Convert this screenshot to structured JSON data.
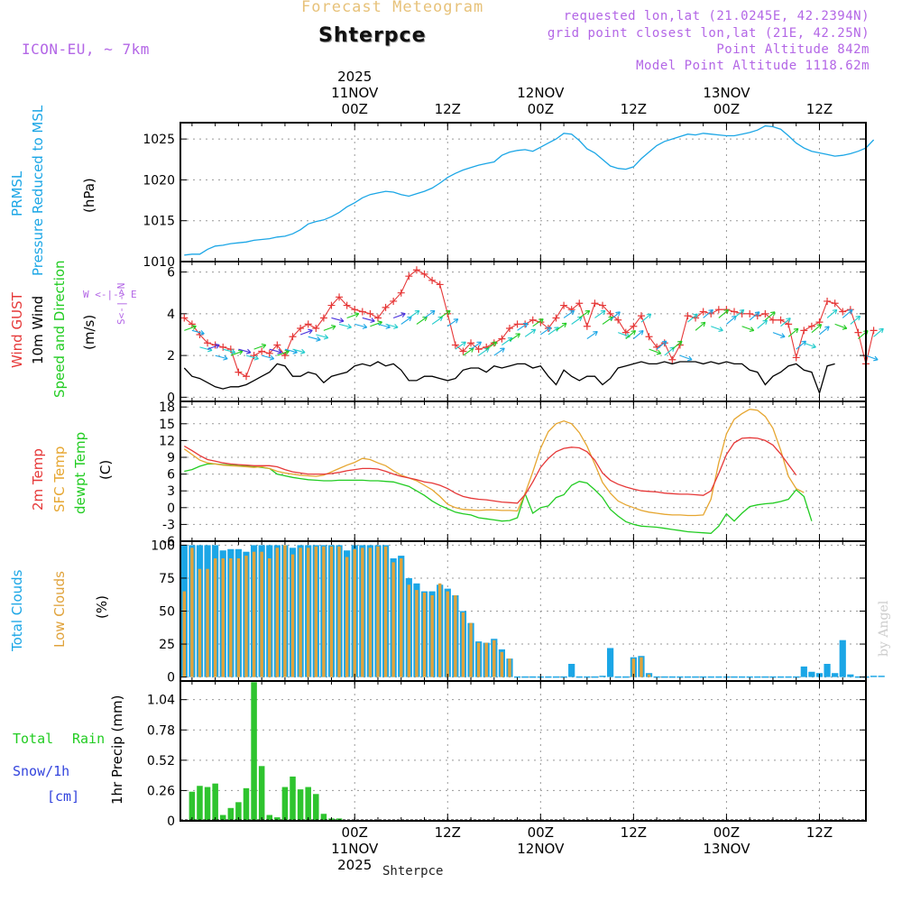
{
  "header": {
    "forecast_title": "Forecast Meteogram",
    "station": "Shterpce",
    "model": "ICON-EU, ~ 7km",
    "requested": "requested lon,lat (21.0245E, 42.2394N)",
    "gridpoint": "grid point closest lon,lat (21E, 42.25N)",
    "point_altitude": "Point Altitude 842m",
    "model_altitude": "Model Point Altitude 1118.62m"
  },
  "footer": {
    "station": "Shterpce",
    "credit": "by Angel"
  },
  "time_axis": {
    "top_labels": [
      {
        "hour": 22,
        "lines": [
          "2025",
          "11NOV",
          "00Z"
        ]
      },
      {
        "hour": 34,
        "lines": [
          "12Z"
        ]
      },
      {
        "hour": 46,
        "lines": [
          "12NOV",
          "00Z"
        ]
      },
      {
        "hour": 58,
        "lines": [
          "12Z"
        ]
      },
      {
        "hour": 70,
        "lines": [
          "13NOV",
          "00Z"
        ]
      },
      {
        "hour": 82,
        "lines": [
          "12Z"
        ]
      }
    ],
    "bottom_labels": [
      {
        "hour": 22,
        "lines": [
          "00Z",
          "11NOV",
          "2025"
        ]
      },
      {
        "hour": 34,
        "lines": [
          "12Z"
        ]
      },
      {
        "hour": 46,
        "lines": [
          "00Z",
          "12NOV"
        ]
      },
      {
        "hour": 58,
        "lines": [
          "12Z"
        ]
      },
      {
        "hour": 70,
        "lines": [
          "00Z",
          "13NOV"
        ]
      },
      {
        "hour": 82,
        "lines": [
          "12Z"
        ]
      }
    ]
  },
  "panel_labels": {
    "pressure": {
      "line1": "PRMSL",
      "line2": "Pressure Reduced to MSL",
      "unit": "(hPa)"
    },
    "wind": {
      "gust": "Wind GUST",
      "wind10": "10m Wind",
      "speed_dir": "Speed and Direction",
      "unit": "(m/s)",
      "compass_ns": "S<-|->N",
      "compass_we": "W <-|-> E"
    },
    "temp": {
      "t2m": "2m Temp",
      "sfc": "SFC Temp",
      "dewpt": "dewpt Temp",
      "unit": "(C)"
    },
    "clouds": {
      "total": "Total Clouds",
      "low": "Low Clouds",
      "unit": "(%)"
    },
    "precip": {
      "rain_word1": "Total",
      "rain_word2": "Rain",
      "snow": "Snow/1h",
      "snow_unit": "[cm]",
      "axis": "1hr Precip (mm)"
    }
  },
  "colors": {
    "pressure": "#1ba6e6",
    "gust": "#e63838",
    "wind10": "#000000",
    "t2m": "#e63838",
    "sfc": "#e6a630",
    "dewpt": "#22cc22",
    "total_clouds": "#1ba6e6",
    "low_clouds": "#e0a33c",
    "rain": "#2ec42e",
    "snow": "#3344dd",
    "label_blue": "#1ba6e6",
    "label_green": "#22cc22",
    "label_purple": "#b366e6"
  },
  "chart_data": [
    {
      "type": "line",
      "id": "pressure",
      "title": "PRMSL Pressure Reduced to MSL",
      "ylabel": "(hPa)",
      "ylim": [
        1010,
        1027
      ],
      "yticks": [
        "1010",
        "1015",
        "1020",
        "1025"
      ],
      "x_range": [
        0,
        88
      ],
      "series": [
        {
          "name": "PRMSL",
          "x_start": 0,
          "x_step": 1,
          "values": [
            1010.8,
            1010.9,
            1010.9,
            1011.5,
            1011.9,
            1012.0,
            1012.2,
            1012.3,
            1012.4,
            1012.6,
            1012.7,
            1012.8,
            1013.0,
            1013.1,
            1013.4,
            1013.9,
            1014.6,
            1014.9,
            1015.1,
            1015.5,
            1016.0,
            1016.7,
            1017.2,
            1017.8,
            1018.2,
            1018.4,
            1018.6,
            1018.5,
            1018.2,
            1018.0,
            1018.3,
            1018.6,
            1019.0,
            1019.6,
            1020.3,
            1020.8,
            1021.2,
            1021.5,
            1021.8,
            1022.0,
            1022.2,
            1023.0,
            1023.4,
            1023.6,
            1023.7,
            1023.5,
            1024.0,
            1024.5,
            1025.0,
            1025.7,
            1025.6,
            1024.8,
            1023.8,
            1023.3,
            1022.5,
            1021.7,
            1021.4,
            1021.3,
            1021.6,
            1022.6,
            1023.4,
            1024.2,
            1024.7,
            1025.0,
            1025.3,
            1025.6,
            1025.5,
            1025.7,
            1025.6,
            1025.5,
            1025.4,
            1025.4,
            1025.6,
            1025.8,
            1026.1,
            1026.6,
            1026.5,
            1026.2,
            1025.4,
            1024.5,
            1023.9,
            1023.5,
            1023.3,
            1023.1,
            1022.9,
            1023.0,
            1023.2,
            1023.5,
            1023.9,
            1024.9
          ]
        }
      ]
    },
    {
      "type": "line",
      "id": "wind",
      "title": "Wind GUST, 10m Wind Speed and Direction",
      "ylabel": "(m/s)",
      "ylim": [
        -0.2,
        6.5
      ],
      "yticks": [
        "0",
        "2",
        "4",
        "6"
      ],
      "series": [
        {
          "name": "Wind GUST",
          "x_start": 0,
          "x_step": 1,
          "values": [
            3.8,
            3.5,
            3.0,
            2.6,
            2.5,
            2.4,
            2.3,
            1.2,
            1.0,
            2.0,
            2.2,
            2.1,
            2.5,
            2.0,
            2.9,
            3.3,
            3.5,
            3.3,
            3.8,
            4.4,
            4.8,
            4.4,
            4.2,
            4.1,
            4.0,
            3.8,
            4.3,
            4.6,
            5.0,
            5.8,
            6.1,
            5.9,
            5.6,
            5.4,
            4.0,
            2.5,
            2.2,
            2.6,
            2.3,
            2.4,
            2.6,
            2.8,
            3.3,
            3.5,
            3.5,
            3.7,
            3.6,
            3.3,
            3.8,
            4.4,
            4.2,
            4.5,
            3.4,
            4.5,
            4.4,
            4.0,
            3.7,
            3.1,
            3.4,
            3.9,
            2.9,
            2.4,
            2.6,
            1.8,
            2.5,
            3.9,
            3.8,
            4.1,
            4.0,
            4.2,
            4.2,
            4.1,
            4.0,
            4.0,
            3.9,
            4.0,
            3.7,
            3.7,
            3.5,
            1.9,
            3.2,
            3.4,
            3.6,
            4.6,
            4.5,
            4.1,
            4.2,
            3.1,
            1.6,
            3.2
          ]
        },
        {
          "name": "10m Wind",
          "x_start": 0,
          "x_step": 1,
          "values": [
            1.4,
            1.0,
            0.9,
            0.7,
            0.5,
            0.4,
            0.5,
            0.5,
            0.6,
            0.8,
            1.0,
            1.2,
            1.6,
            1.5,
            1.0,
            1.0,
            1.2,
            1.1,
            0.7,
            1.0,
            1.1,
            1.2,
            1.5,
            1.6,
            1.5,
            1.7,
            1.5,
            1.6,
            1.3,
            0.8,
            0.8,
            1.0,
            1.0,
            0.9,
            0.8,
            0.9,
            1.3,
            1.4,
            1.4,
            1.2,
            1.5,
            1.4,
            1.5,
            1.6,
            1.6,
            1.4,
            1.5,
            1.0,
            0.6,
            1.3,
            1.0,
            0.8,
            1.0,
            1.0,
            0.6,
            0.9,
            1.4,
            1.5,
            1.6,
            1.7,
            1.6,
            1.6,
            1.7,
            1.6,
            1.7,
            1.7,
            1.7,
            1.6,
            1.7,
            1.6,
            1.7,
            1.6,
            1.6,
            1.3,
            1.2,
            0.6,
            1.0,
            1.2,
            1.5,
            1.6,
            1.3,
            1.2,
            0.2,
            1.5,
            1.6
          ]
        }
      ]
    },
    {
      "type": "line",
      "id": "temp",
      "title": "2m Temp, SFC Temp, dewpt Temp",
      "ylabel": "(C)",
      "ylim": [
        -6,
        19
      ],
      "yticks": [
        "-6",
        "-3",
        "0",
        "3",
        "6",
        "9",
        "12",
        "15",
        "18"
      ],
      "series": [
        {
          "name": "2m Temp",
          "x_start": 0,
          "x_step": 1,
          "values": [
            11.0,
            10.2,
            9.3,
            8.6,
            8.3,
            8.0,
            7.8,
            7.7,
            7.6,
            7.5,
            7.5,
            7.5,
            7.3,
            6.8,
            6.4,
            6.2,
            6.0,
            6.0,
            6.0,
            6.1,
            6.3,
            6.6,
            6.8,
            7.0,
            7.0,
            6.9,
            6.5,
            6.0,
            5.6,
            5.3,
            5.0,
            4.6,
            4.4,
            4.0,
            3.4,
            2.6,
            2.0,
            1.7,
            1.5,
            1.4,
            1.2,
            1.0,
            0.9,
            0.8,
            2.3,
            4.6,
            7.2,
            8.8,
            10.0,
            10.6,
            10.8,
            10.7,
            10.0,
            8.5,
            6.2,
            4.9,
            4.2,
            3.7,
            3.3,
            3.0,
            2.9,
            2.8,
            2.6,
            2.5,
            2.4,
            2.4,
            2.3,
            2.2,
            3.0,
            6.1,
            9.5,
            11.6,
            12.4,
            12.5,
            12.4,
            12.0,
            11.2,
            9.6,
            7.7,
            5.8
          ]
        },
        {
          "name": "SFC Temp",
          "x_start": 0,
          "x_step": 1,
          "values": [
            10.5,
            9.5,
            8.5,
            8.0,
            7.8,
            7.6,
            7.5,
            7.4,
            7.3,
            7.2,
            7.3,
            7.0,
            6.5,
            6.2,
            6.0,
            5.8,
            5.7,
            5.6,
            5.8,
            6.4,
            7.0,
            7.6,
            8.1,
            8.8,
            8.6,
            8.0,
            7.5,
            6.6,
            5.8,
            5.3,
            4.8,
            4.0,
            3.2,
            2.0,
            0.6,
            0.0,
            -0.3,
            -0.4,
            -0.5,
            -0.4,
            -0.4,
            -0.5,
            -0.5,
            -0.6,
            2.5,
            6.4,
            10.6,
            13.6,
            15.0,
            15.5,
            15.0,
            13.4,
            11.0,
            7.8,
            4.5,
            2.6,
            1.2,
            0.5,
            0.0,
            -0.5,
            -0.8,
            -1.0,
            -1.2,
            -1.3,
            -1.3,
            -1.4,
            -1.4,
            -1.3,
            1.5,
            8.0,
            13.2,
            15.8,
            16.8,
            17.6,
            17.4,
            16.3,
            14.2,
            10.3,
            5.6,
            3.4,
            2.7
          ]
        },
        {
          "name": "dewpt Temp",
          "x_start": 0,
          "x_step": 1,
          "values": [
            6.5,
            6.8,
            7.4,
            7.8,
            7.8,
            7.7,
            7.6,
            7.5,
            7.4,
            7.3,
            7.2,
            7.0,
            6.0,
            5.7,
            5.4,
            5.2,
            5.0,
            4.9,
            4.8,
            4.8,
            4.9,
            4.9,
            4.9,
            4.9,
            4.8,
            4.8,
            4.7,
            4.6,
            4.2,
            3.8,
            3.0,
            2.2,
            1.2,
            0.4,
            -0.2,
            -0.8,
            -1.1,
            -1.3,
            -1.8,
            -2.0,
            -2.2,
            -2.4,
            -2.3,
            -1.8,
            2.5,
            -1.0,
            0.0,
            0.3,
            1.8,
            2.3,
            4.0,
            4.7,
            4.4,
            3.2,
            1.8,
            -0.3,
            -1.5,
            -2.5,
            -3.0,
            -3.3,
            -3.4,
            -3.5,
            -3.7,
            -3.9,
            -4.1,
            -4.3,
            -4.4,
            -4.5,
            -4.6,
            -3.3,
            -1.1,
            -2.4,
            -1.0,
            0.2,
            0.5,
            0.7,
            0.8,
            1.1,
            1.5,
            3.2,
            2.0,
            -2.4
          ]
        }
      ]
    },
    {
      "type": "bar",
      "id": "clouds",
      "title": "Total Clouds, Low Clouds",
      "ylabel": "(%)",
      "ylim": [
        -3,
        103
      ],
      "yticks": [
        "0",
        "25",
        "50",
        "75",
        "100"
      ],
      "series": [
        {
          "name": "Total Clouds",
          "x_start": 0,
          "x_step": 1,
          "values": [
            100,
            100,
            100,
            100,
            100,
            96,
            97,
            97,
            95,
            100,
            100,
            100,
            100,
            100,
            98,
            100,
            100,
            100,
            100,
            100,
            100,
            96,
            100,
            100,
            100,
            100,
            100,
            90,
            92,
            75,
            71,
            65,
            65,
            70,
            67,
            62,
            50,
            41,
            27,
            26,
            29,
            21,
            14,
            0,
            0,
            0,
            0,
            0,
            0,
            0,
            10,
            0,
            0,
            0,
            1,
            22,
            0,
            0,
            15,
            16,
            3,
            0,
            0,
            0,
            0,
            0,
            0,
            0,
            0,
            0,
            0,
            0,
            0,
            0,
            0,
            0,
            0,
            0,
            0,
            0,
            8,
            4,
            3,
            10,
            3,
            28,
            2,
            0,
            0,
            1,
            1
          ]
        },
        {
          "name": "Low Clouds",
          "x_start": 0,
          "x_step": 1,
          "values": [
            65,
            98,
            82,
            82,
            90,
            90,
            90,
            90,
            92,
            95,
            95,
            90,
            98,
            100,
            93,
            98,
            98,
            99,
            99,
            99,
            99,
            91,
            97,
            98,
            98,
            99,
            99,
            87,
            90,
            70,
            66,
            64,
            62,
            71,
            65,
            62,
            49,
            41,
            26,
            26,
            28,
            19,
            14,
            0,
            0,
            0,
            0,
            0,
            0,
            0,
            0,
            0,
            0,
            0,
            0,
            0,
            0,
            0,
            14,
            15,
            2,
            0,
            0,
            0,
            0,
            0,
            0,
            0,
            0,
            0,
            0,
            0,
            0,
            0,
            0,
            0,
            0,
            0,
            0,
            0,
            0,
            0,
            0,
            0,
            0,
            0,
            0,
            0,
            0,
            0,
            0
          ]
        }
      ]
    },
    {
      "type": "bar",
      "id": "precip",
      "title": "1hr Precip",
      "ylabel": "1hr Precip (mm)",
      "ylim": [
        0,
        1.2
      ],
      "yticks": [
        "0",
        "0.26",
        "0.52",
        "0.78",
        "1.04"
      ],
      "series": [
        {
          "name": "Total Rain",
          "x_start": 1,
          "x_step": 1,
          "values": [
            0.25,
            0.3,
            0.29,
            0.32,
            0.05,
            0.11,
            0.16,
            0.28,
            1.19,
            0.47,
            0.05,
            0.03,
            0.29,
            0.38,
            0.27,
            0.29,
            0.23,
            0.06,
            0.02,
            0.02
          ]
        },
        {
          "name": "Snow/1h",
          "x_start": 1,
          "x_step": 1,
          "values": [
            0,
            0,
            0,
            0,
            0,
            0,
            0,
            0,
            0,
            0,
            0,
            0,
            0,
            0,
            0,
            0,
            0,
            0,
            0,
            0
          ]
        }
      ]
    }
  ]
}
